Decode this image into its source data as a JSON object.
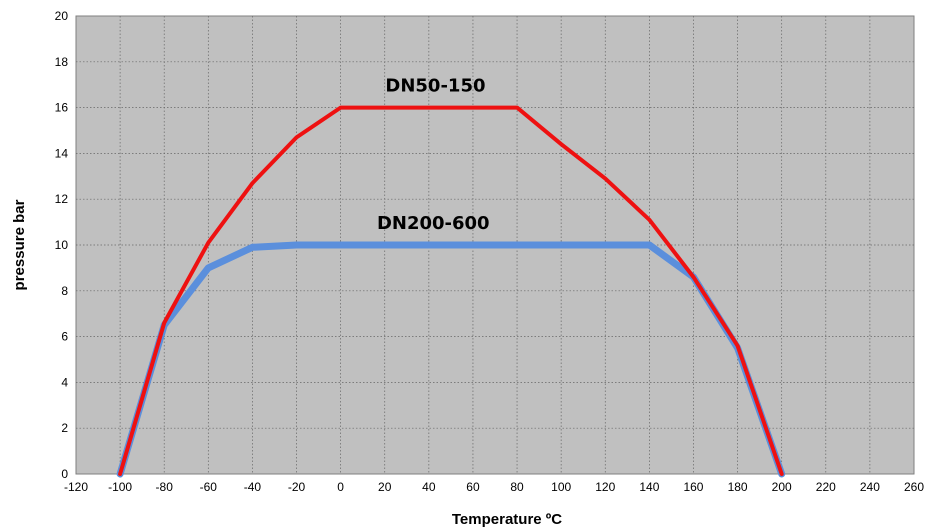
{
  "chart_data": {
    "type": "line",
    "xlabel": "Temperature  ºC",
    "ylabel": "pressure bar",
    "xlim": [
      -120,
      260
    ],
    "ylim": [
      0,
      20
    ],
    "x_ticks": [
      "-120",
      "-100",
      "-80",
      "-60",
      "-40",
      "-20",
      "0",
      "20",
      "40",
      "60",
      "80",
      "100",
      "120",
      "140",
      "160",
      "180",
      "200",
      "220",
      "240",
      "260"
    ],
    "y_ticks": [
      "0",
      "2",
      "4",
      "6",
      "8",
      "10",
      "12",
      "14",
      "16",
      "18",
      "20"
    ],
    "grid": true,
    "plot_background": "#c0c0c0",
    "series": [
      {
        "name": "DN200-600",
        "color": "#5b8fdc",
        "points": [
          [
            -100,
            0
          ],
          [
            -80,
            6.5
          ],
          [
            -60,
            9
          ],
          [
            -40,
            9.9
          ],
          [
            -20,
            10
          ],
          [
            0,
            10
          ],
          [
            20,
            10
          ],
          [
            40,
            10
          ],
          [
            60,
            10
          ],
          [
            80,
            10
          ],
          [
            100,
            10
          ],
          [
            120,
            10
          ],
          [
            140,
            10
          ],
          [
            160,
            8.6
          ],
          [
            180,
            5.5
          ],
          [
            200,
            0
          ]
        ]
      },
      {
        "name": "DN50-150",
        "color": "#ee1111",
        "points": [
          [
            -100,
            0
          ],
          [
            -80,
            6.6
          ],
          [
            -60,
            10.1
          ],
          [
            -40,
            12.7
          ],
          [
            -20,
            14.7
          ],
          [
            0,
            16
          ],
          [
            20,
            16
          ],
          [
            40,
            16
          ],
          [
            60,
            16
          ],
          [
            80,
            16
          ],
          [
            100,
            14.4
          ],
          [
            120,
            12.9
          ],
          [
            140,
            11.1
          ],
          [
            160,
            8.6
          ],
          [
            180,
            5.6
          ],
          [
            200,
            0
          ]
        ]
      }
    ],
    "annotations": [
      {
        "text": "DN50-150",
        "x": 43,
        "y": 16.7
      },
      {
        "text": "DN200-600",
        "x": 42,
        "y": 10.7
      }
    ]
  }
}
